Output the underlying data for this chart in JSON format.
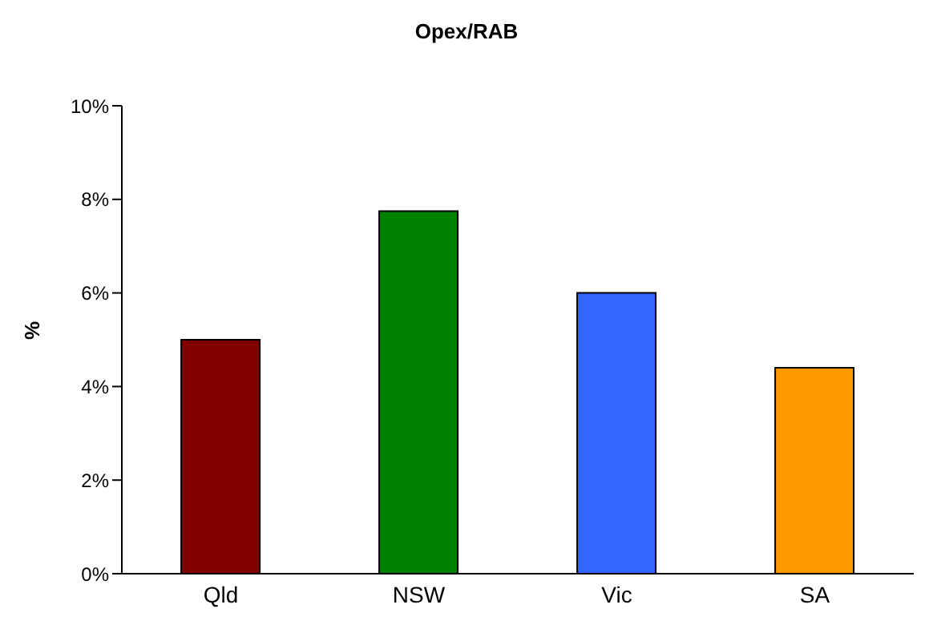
{
  "chart_data": {
    "type": "bar",
    "title": "Opex/RAB",
    "ylabel": "%",
    "categories": [
      "Qld",
      "NSW",
      "Vic",
      "SA"
    ],
    "values": [
      5.0,
      7.75,
      6.0,
      4.4
    ],
    "colors": [
      "#800000",
      "#008000",
      "#3366ff",
      "#ff9900"
    ],
    "ylim": [
      0,
      10
    ],
    "yticks": [
      {
        "value": 0,
        "label": "0%"
      },
      {
        "value": 2,
        "label": "2%"
      },
      {
        "value": 4,
        "label": "4%"
      },
      {
        "value": 6,
        "label": "6%"
      },
      {
        "value": 8,
        "label": "8%"
      },
      {
        "value": 10,
        "label": "10%"
      }
    ],
    "grid": false,
    "legend": false
  }
}
